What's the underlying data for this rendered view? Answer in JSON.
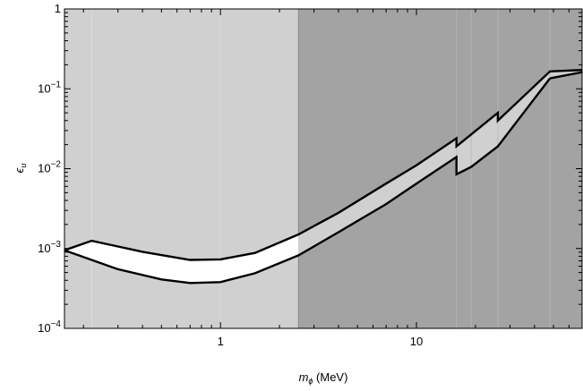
{
  "chart_data": {
    "type": "area",
    "title": "",
    "xlabel": {
      "symbol": "m",
      "subscript": "ϕ",
      "unit": " (MeV)"
    },
    "ylabel": {
      "symbol": "ϵ",
      "subscript": "u"
    },
    "xscale": "log",
    "yscale": "log",
    "xlim": [
      0.16,
      70
    ],
    "ylim": [
      0.0001,
      1
    ],
    "grid": false,
    "x_ticks": [
      {
        "value": 1,
        "label": "1"
      },
      {
        "value": 10,
        "label": "10"
      }
    ],
    "y_ticks": [
      {
        "value": 0.0001,
        "base": "10",
        "exp": "−4"
      },
      {
        "value": 0.001,
        "base": "10",
        "exp": "−3"
      },
      {
        "value": 0.01,
        "base": "10",
        "exp": "−2"
      },
      {
        "value": 0.1,
        "base": "10",
        "exp": "−1"
      },
      {
        "value": 1,
        "base": "1",
        "exp": ""
      }
    ],
    "shaded_regions": [
      {
        "name": "light",
        "x_range": [
          0.16,
          2.5
        ],
        "color": "#d0d0d0"
      },
      {
        "name": "dark",
        "x_range": [
          2.5,
          70
        ],
        "color": "#a3a3a3"
      }
    ],
    "faint_vertical_lines": [
      0.22,
      1.0,
      16,
      19,
      26,
      48
    ],
    "series": [
      {
        "role": "upper-edge",
        "x": [
          0.16,
          0.22,
          0.4,
          0.7,
          1.0,
          1.5,
          2.5,
          4,
          7,
          10,
          16,
          16,
          26,
          26,
          48,
          70
        ],
        "y": [
          0.00095,
          0.00125,
          0.00091,
          0.00072,
          0.00073,
          0.00088,
          0.0015,
          0.0028,
          0.0065,
          0.011,
          0.024,
          0.019,
          0.05,
          0.04,
          0.165,
          0.172
        ]
      },
      {
        "role": "lower-edge",
        "x": [
          0.16,
          0.3,
          0.5,
          0.7,
          1.0,
          1.5,
          2.5,
          4,
          7,
          10,
          16,
          16,
          19,
          26
        ],
        "y": [
          0.00095,
          0.00055,
          0.00041,
          0.00037,
          0.00038,
          0.00049,
          0.00082,
          0.0016,
          0.0036,
          0.0065,
          0.014,
          0.0085,
          0.0105,
          0.019
        ]
      }
    ],
    "band_colors": {
      "open": "#ffffff",
      "covered": "#d0d0d0",
      "edge": "#000000"
    }
  }
}
